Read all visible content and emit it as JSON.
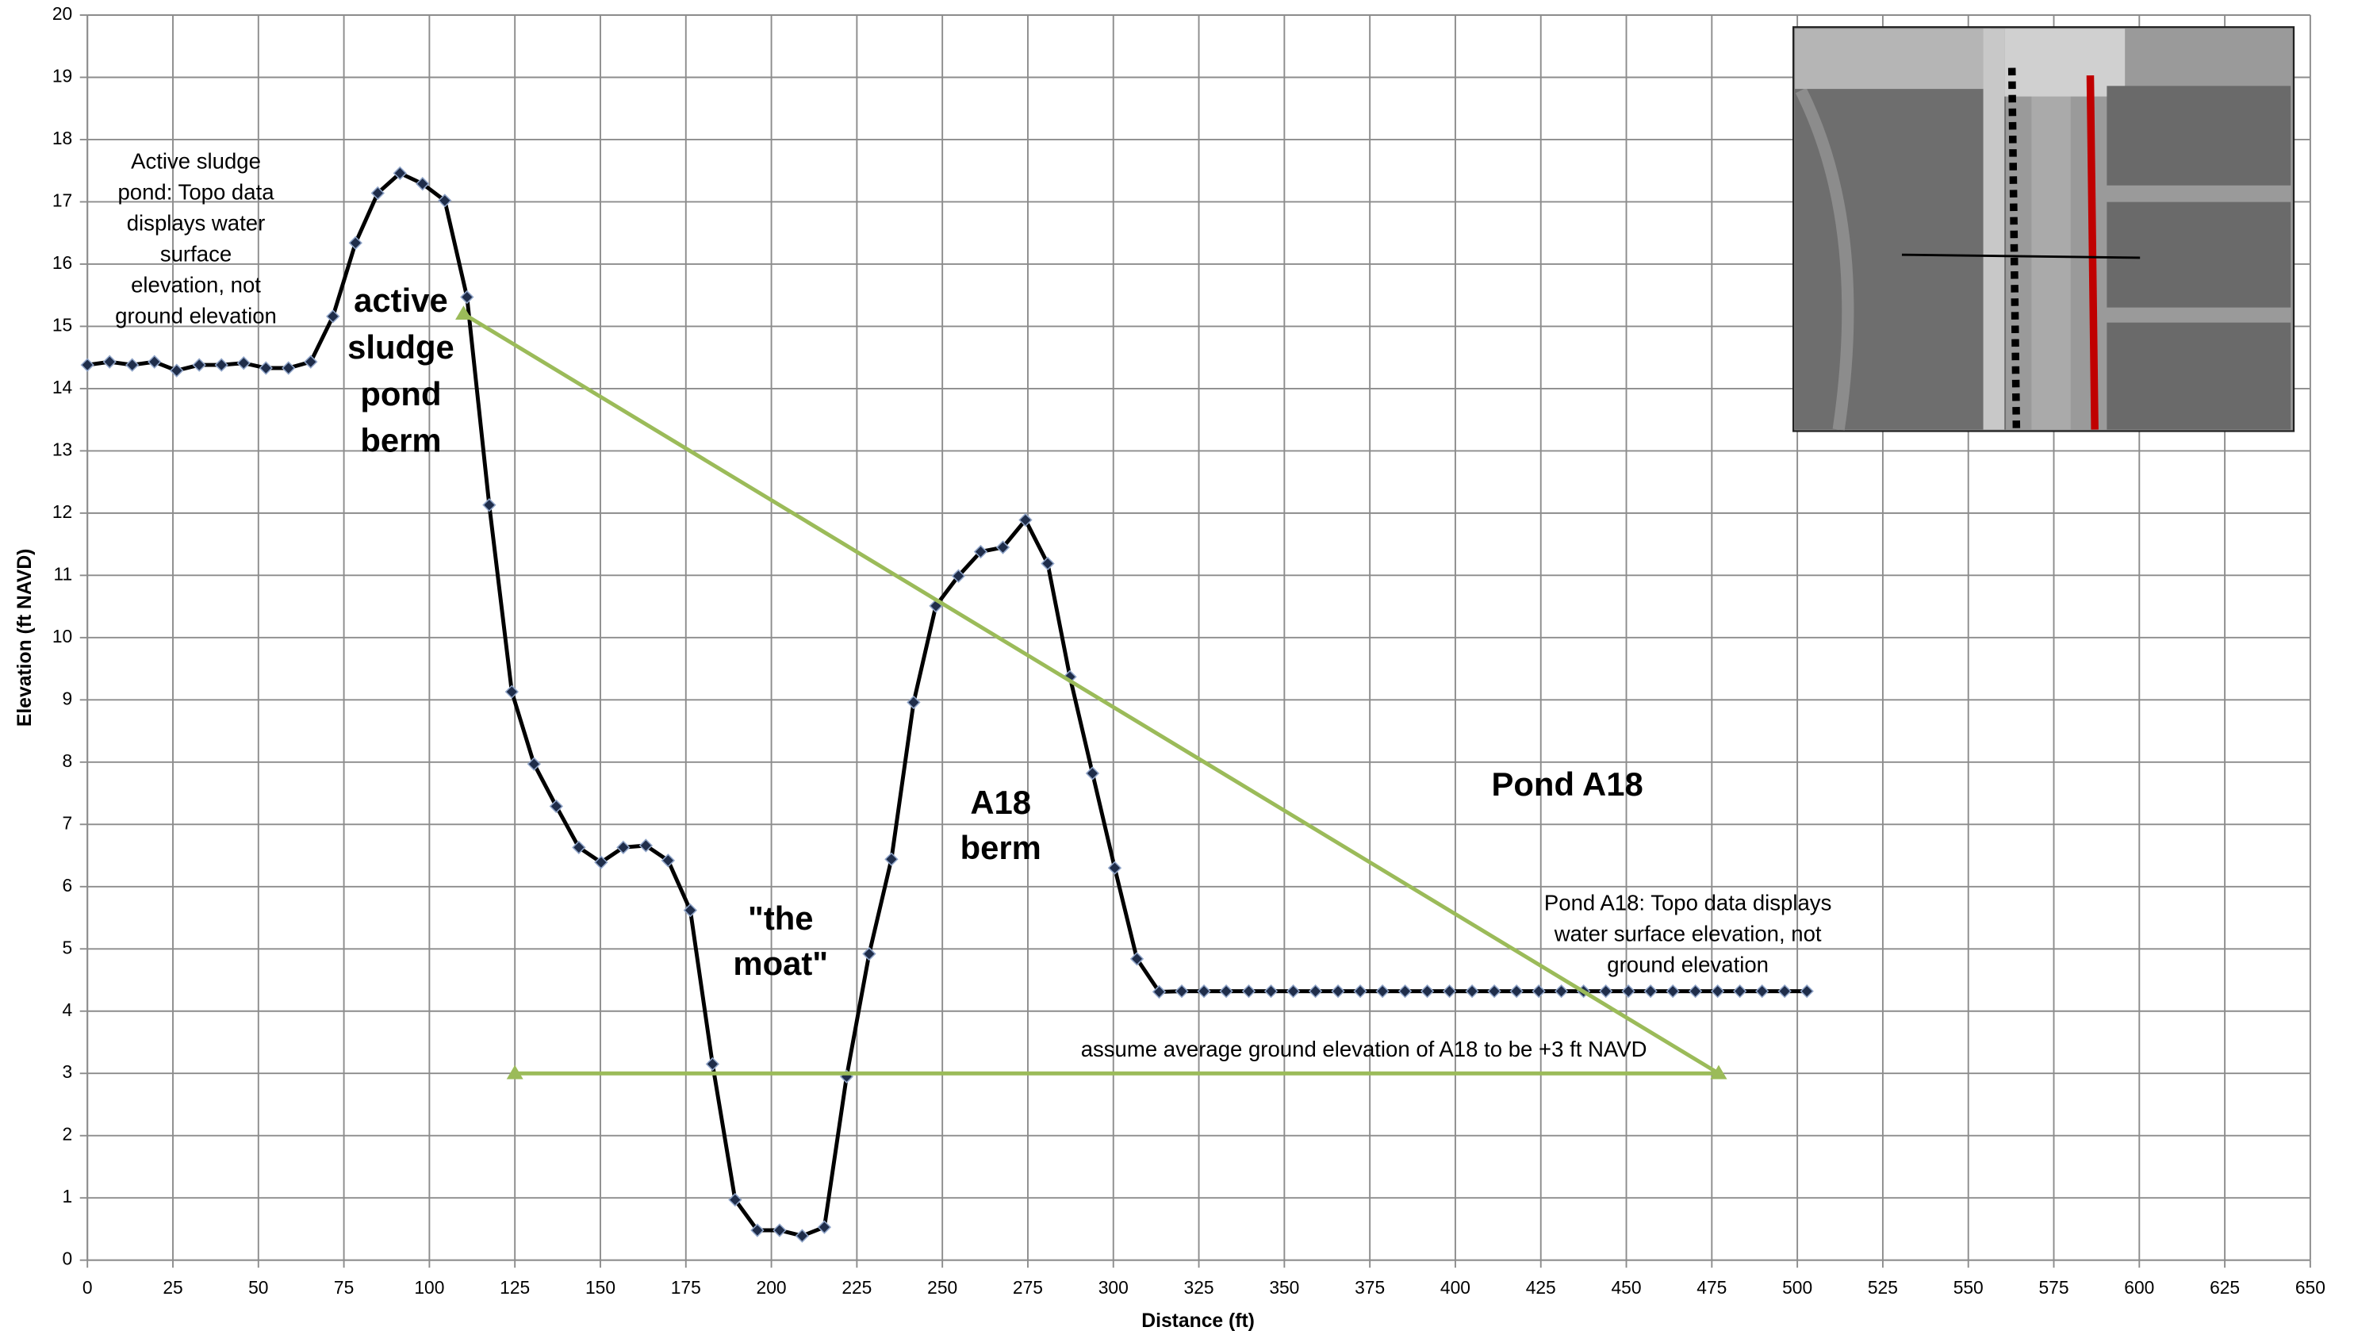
{
  "chart_data": {
    "type": "line",
    "x_label": "Distance (ft)",
    "y_label": "Elevation (ft NAVD)",
    "xlim": [
      0,
      650
    ],
    "ylim": [
      0,
      20
    ],
    "xticks": [
      0,
      25,
      50,
      75,
      100,
      125,
      150,
      175,
      200,
      225,
      250,
      275,
      300,
      325,
      350,
      375,
      400,
      425,
      450,
      475,
      500,
      525,
      550,
      575,
      600,
      625,
      650
    ],
    "yticks": [
      0,
      1,
      2,
      3,
      4,
      5,
      6,
      7,
      8,
      9,
      10,
      11,
      12,
      13,
      14,
      15,
      16,
      17,
      18,
      19,
      20
    ],
    "grid": true,
    "x": [
      0,
      6.5,
      13.1,
      19.6,
      26.1,
      32.7,
      39.2,
      45.7,
      52.2,
      58.8,
      65.3,
      71.8,
      78.4,
      84.9,
      91.4,
      98,
      104.5,
      111,
      117.5,
      124.1,
      130.6,
      137.1,
      143.7,
      150.2,
      156.7,
      163.3,
      169.8,
      176.3,
      182.8,
      189.4,
      195.9,
      202.4,
      209,
      215.5,
      222,
      228.6,
      235.1,
      241.6,
      248.1,
      254.7,
      261.2,
      267.7,
      274.3,
      280.8,
      287.3,
      293.9,
      300.4,
      306.9,
      313.4,
      320,
      326.5,
      333,
      339.6,
      346.1,
      352.6,
      359.1,
      365.7,
      372.2,
      378.7,
      385.3,
      391.8,
      398.3,
      404.9,
      411.4,
      417.9,
      424.4,
      431,
      437.5,
      444,
      450.6,
      457.1,
      463.6,
      470.2,
      476.7,
      483.2,
      489.7,
      496.3,
      502.8
    ],
    "series": [
      {
        "color": "#000000",
        "marker_color": "#1f2d4a",
        "values": [
          14.38,
          14.43,
          14.38,
          14.43,
          14.29,
          14.38,
          14.38,
          14.41,
          14.33,
          14.33,
          14.43,
          15.16,
          16.34,
          17.14,
          17.46,
          17.29,
          17.02,
          15.47,
          12.13,
          9.13,
          7.97,
          7.29,
          6.63,
          6.39,
          6.63,
          6.66,
          6.42,
          5.62,
          3.15,
          0.97,
          0.48,
          0.48,
          0.39,
          0.53,
          2.95,
          4.92,
          6.44,
          8.96,
          10.51,
          10.99,
          11.38,
          11.45,
          11.89,
          11.19,
          9.37,
          7.82,
          6.3,
          4.84,
          4.31,
          4.32,
          4.32,
          4.32,
          4.32,
          4.32,
          4.32,
          4.32,
          4.32,
          4.32,
          4.32,
          4.32,
          4.32,
          4.32,
          4.32,
          4.32,
          4.32,
          4.32,
          4.32,
          4.32,
          4.32,
          4.32,
          4.32,
          4.32,
          4.32,
          4.32,
          4.32,
          4.32,
          4.32,
          4.32
        ]
      }
    ],
    "guide_lines": [
      {
        "color": "#9bbb59",
        "x": [
          110,
          477
        ],
        "values": [
          15.2,
          3
        ]
      },
      {
        "color": "#9bbb59",
        "x": [
          125,
          477
        ],
        "values": [
          3,
          3
        ]
      }
    ],
    "annotations": [
      [
        "Active sludge",
        "pond: Topo data",
        "displays water",
        "surface",
        "elevation, not",
        "ground elevation"
      ],
      [
        "active",
        "sludge",
        "pond",
        "berm"
      ],
      [
        "\"the",
        "moat\""
      ],
      [
        "A18",
        "berm"
      ],
      [
        "Pond A18"
      ],
      [
        "Pond A18: Topo data displays",
        "water surface elevation, not",
        "ground elevation"
      ],
      [
        "assume average ground elevation of A18 to be +3 ft NAVD"
      ]
    ]
  }
}
